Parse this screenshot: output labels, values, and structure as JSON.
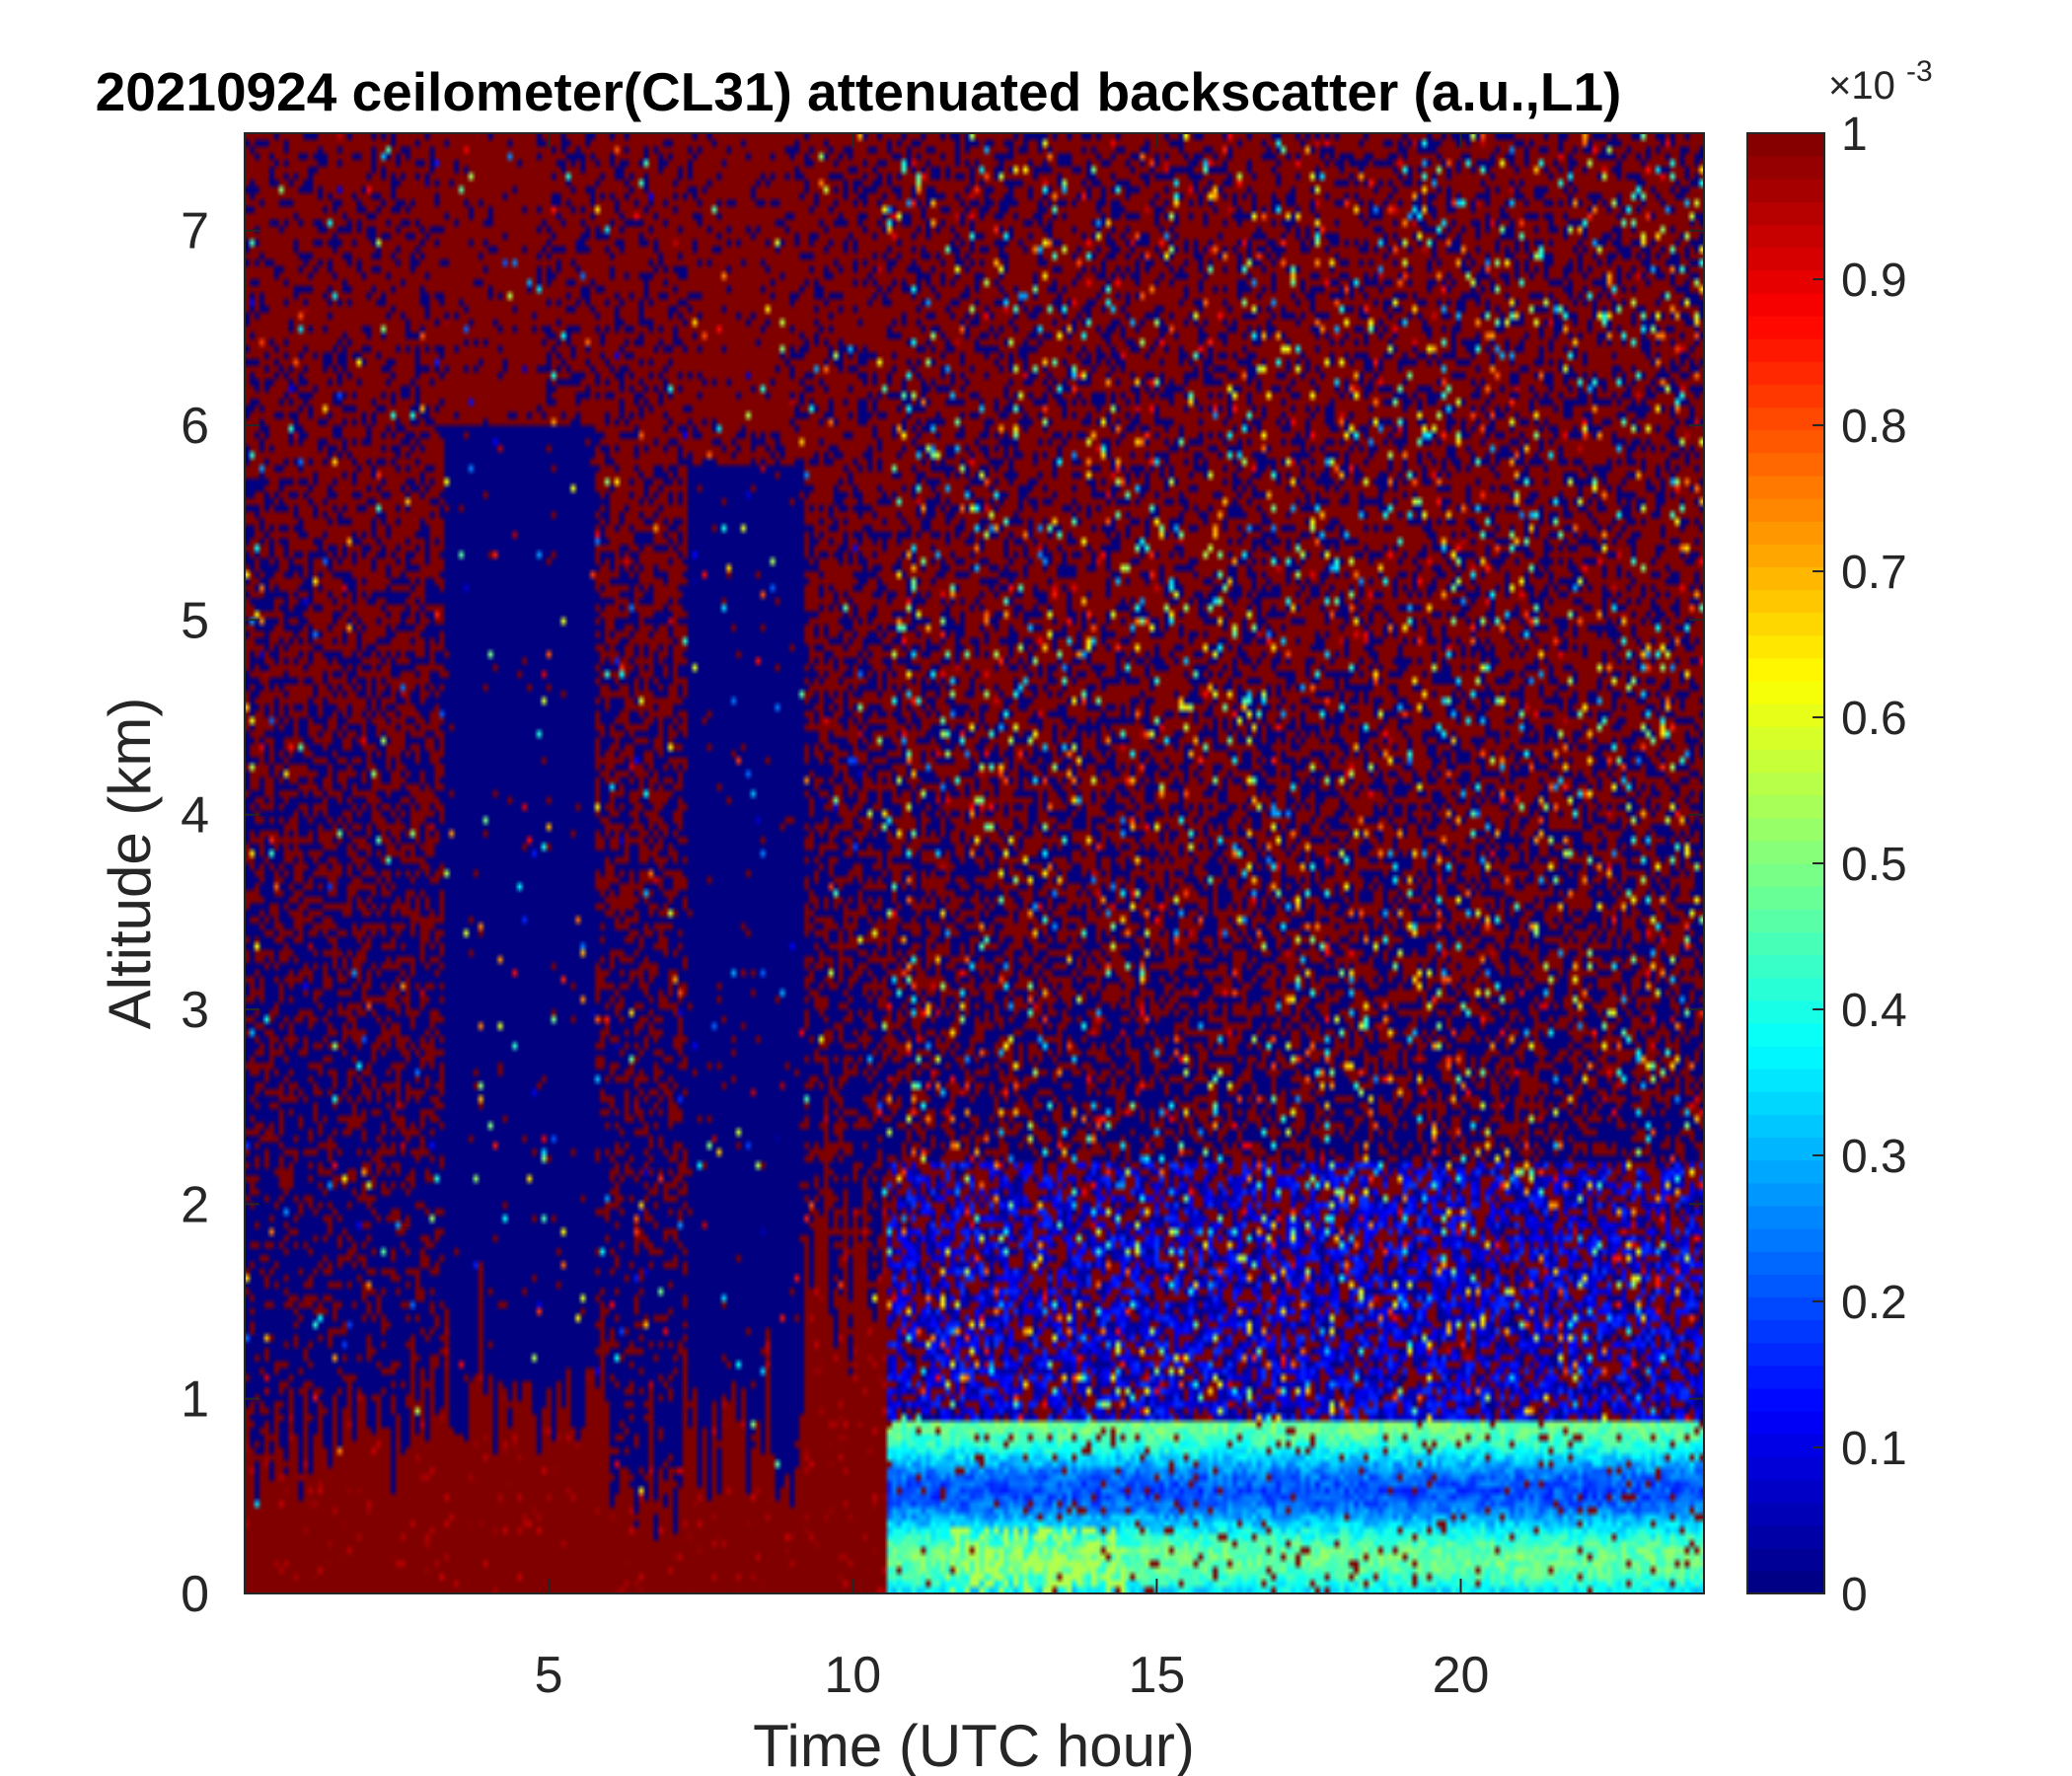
{
  "chart_data": {
    "type": "heatmap",
    "title": "20210924 ceilometer(CL31) attenuated backscatter (a.u.,L1)",
    "xlabel": "Time (UTC hour)",
    "ylabel": "Altitude (km)",
    "xlim": [
      0,
      24
    ],
    "ylim": [
      0,
      7.5
    ],
    "xticks": [
      5,
      10,
      15,
      20
    ],
    "yticks": [
      0,
      1,
      2,
      3,
      4,
      5,
      6,
      7
    ],
    "colorbar": {
      "colormap": "jet",
      "clim": [
        0,
        1
      ],
      "ticks": [
        0,
        0.1,
        0.2,
        0.3,
        0.4,
        0.5,
        0.6,
        0.7,
        0.8,
        0.9,
        1
      ],
      "ticklabels": [
        "0",
        "0.1",
        "0.2",
        "0.3",
        "0.4",
        "0.5",
        "0.6",
        "0.7",
        "0.8",
        "0.9",
        "1"
      ],
      "exponent_base": "×10",
      "exponent_power": "-3"
    },
    "regions": [
      {
        "description": "low-level saturated aerosol/cloud layer",
        "x": [
          0,
          10.5
        ],
        "y": [
          0,
          1.1
        ],
        "value": 1.0
      },
      {
        "description": "clear/low-signal column",
        "x": [
          3.3,
          5.8
        ],
        "y": [
          1.1,
          6.0
        ],
        "value": 0.0
      },
      {
        "description": "clear/low-signal column",
        "x": [
          7.3,
          9.2
        ],
        "y": [
          0.6,
          5.8
        ],
        "value": 0.0
      },
      {
        "description": "daytime boundary-layer aerosol",
        "x": [
          10.5,
          24
        ],
        "y": [
          0,
          1.0
        ],
        "value": 0.35
      },
      {
        "description": "noisy upper-level signal",
        "x": [
          10.5,
          24
        ],
        "y": [
          1.5,
          7.5
        ],
        "value": 0.5
      }
    ]
  }
}
